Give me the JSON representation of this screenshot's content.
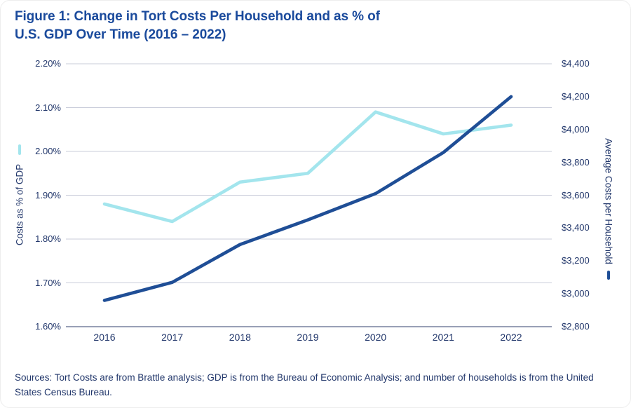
{
  "figure": {
    "title_line1": "Figure 1: Change in Tort Costs Per Household and as % of",
    "title_line2": "U.S. GDP Over Time (2016 – 2022)",
    "source_note": "Sources: Tort Costs are from Brattle analysis; GDP is from the Bureau of Economic Analysis; and number of households is from the United States Census Bureau."
  },
  "colors": {
    "title_text": "#1A4A9C",
    "axis_text": "#22376B",
    "gdp_line": "#A3E5ED",
    "household_line": "#1F4E96",
    "gridline": "#C9CCDA",
    "axis_line": "#76819E",
    "background": "#FFFFFF"
  },
  "chart_data": {
    "type": "line",
    "title": "Figure 1: Change in Tort Costs Per Household and as % of U.S. GDP Over Time (2016 – 2022)",
    "categories": [
      "2016",
      "2017",
      "2018",
      "2019",
      "2020",
      "2021",
      "2022"
    ],
    "series": [
      {
        "name": "Costs as % of GDP",
        "axis": "left",
        "color_key": "gdp_line",
        "values": [
          1.88,
          1.84,
          1.93,
          1.95,
          2.09,
          2.04,
          2.06
        ]
      },
      {
        "name": "Average Costs per Household",
        "axis": "right",
        "color_key": "household_line",
        "values": [
          2960,
          3070,
          3300,
          3450,
          3610,
          3860,
          4200
        ]
      }
    ],
    "left_axis": {
      "label": "Costs as % of GDP",
      "tick_labels": [
        "2.20%",
        "2.10%",
        "2.00%",
        "1.90%",
        "1.80%",
        "1.70%",
        "1.60%"
      ],
      "min": 1.6,
      "max": 2.2
    },
    "right_axis": {
      "label": "Average Costs per Household",
      "tick_labels": [
        "$4,400",
        "$4,200",
        "$4,000",
        "$3,800",
        "$3,600",
        "$3,400",
        "$3,200",
        "$3,000",
        "$2,800"
      ],
      "min": 2800,
      "max": 4400
    },
    "grid": "horizontal",
    "legend": "dash markers beside each axis title"
  }
}
